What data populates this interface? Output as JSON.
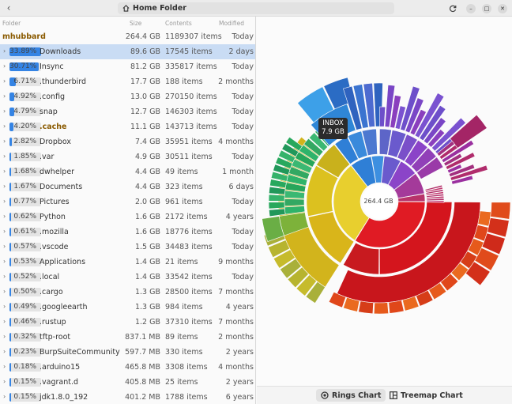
{
  "titlebar": {
    "path_label": "Home Folder",
    "icons": [
      "back-icon",
      "home-icon",
      "refresh-icon",
      "minimize-icon",
      "maximize-icon",
      "close-icon"
    ]
  },
  "columns": {
    "folder": "Folder",
    "size": "Size",
    "contents": "Contents",
    "modified": "Modified"
  },
  "root": {
    "name": "mhubbard",
    "size": "264.4 GB",
    "items": "1189307 items",
    "modified": "Today"
  },
  "rows": [
    {
      "pct": "33.89%",
      "fill": 0.3389,
      "name": "Downloads",
      "size": "89.6 GB",
      "items": "17545 items",
      "modified": "2 days",
      "selected": true
    },
    {
      "pct": "30.71%",
      "fill": 0.3071,
      "name": "Insync",
      "size": "81.2 GB",
      "items": "335817 items",
      "modified": "Today"
    },
    {
      "pct": "6.71%",
      "fill": 0.0671,
      "name": ".thunderbird",
      "size": "17.7 GB",
      "items": "188 items",
      "modified": "2 months"
    },
    {
      "pct": "4.92%",
      "fill": 0.0492,
      "name": ".config",
      "size": "13.0 GB",
      "items": "270150 items",
      "modified": "Today"
    },
    {
      "pct": "4.79%",
      "fill": 0.0479,
      "name": "snap",
      "size": "12.7 GB",
      "items": "146303 items",
      "modified": "Today"
    },
    {
      "pct": "4.20%",
      "fill": 0.042,
      "name": ".cache",
      "size": "11.1 GB",
      "items": "143713 items",
      "modified": "Today",
      "highlight": true
    },
    {
      "pct": "2.82%",
      "fill": 0.0282,
      "name": "Dropbox",
      "size": "7.4 GB",
      "items": "35951 items",
      "modified": "4 months"
    },
    {
      "pct": "1.85%",
      "fill": 0.0185,
      "name": ".var",
      "size": "4.9 GB",
      "items": "30511 items",
      "modified": "Today"
    },
    {
      "pct": "1.68%",
      "fill": 0.0168,
      "name": "dwhelper",
      "size": "4.4 GB",
      "items": "49 items",
      "modified": "1 month"
    },
    {
      "pct": "1.67%",
      "fill": 0.0167,
      "name": "Documents",
      "size": "4.4 GB",
      "items": "323 items",
      "modified": "6 days"
    },
    {
      "pct": "0.77%",
      "fill": 0.0077,
      "name": "Pictures",
      "size": "2.0 GB",
      "items": "961 items",
      "modified": "Today"
    },
    {
      "pct": "0.62%",
      "fill": 0.0062,
      "name": "Python",
      "size": "1.6 GB",
      "items": "2172 items",
      "modified": "4 years"
    },
    {
      "pct": "0.61%",
      "fill": 0.0061,
      "name": ".mozilla",
      "size": "1.6 GB",
      "items": "18776 items",
      "modified": "Today"
    },
    {
      "pct": "0.57%",
      "fill": 0.0057,
      "name": ".vscode",
      "size": "1.5 GB",
      "items": "34483 items",
      "modified": "Today"
    },
    {
      "pct": "0.53%",
      "fill": 0.0053,
      "name": "Applications",
      "size": "1.4 GB",
      "items": "21 items",
      "modified": "9 months"
    },
    {
      "pct": "0.52%",
      "fill": 0.0052,
      "name": ".local",
      "size": "1.4 GB",
      "items": "33542 items",
      "modified": "Today"
    },
    {
      "pct": "0.50%",
      "fill": 0.005,
      "name": ".cargo",
      "size": "1.3 GB",
      "items": "28500 items",
      "modified": "7 months"
    },
    {
      "pct": "0.49%",
      "fill": 0.0049,
      "name": ".googleearth",
      "size": "1.3 GB",
      "items": "984 items",
      "modified": "4 years"
    },
    {
      "pct": "0.46%",
      "fill": 0.0046,
      "name": ".rustup",
      "size": "1.2 GB",
      "items": "37310 items",
      "modified": "7 months"
    },
    {
      "pct": "0.32%",
      "fill": 0.0032,
      "name": "tftp-root",
      "size": "837.1 MB",
      "items": "89 items",
      "modified": "2 months"
    },
    {
      "pct": "0.23%",
      "fill": 0.0023,
      "name": "BurpSuiteCommunity",
      "size": "597.7 MB",
      "items": "330 items",
      "modified": "2 years"
    },
    {
      "pct": "0.18%",
      "fill": 0.0018,
      "name": ".arduino15",
      "size": "465.8 MB",
      "items": "3308 items",
      "modified": "4 months"
    },
    {
      "pct": "0.15%",
      "fill": 0.0015,
      "name": ".vagrant.d",
      "size": "405.8 MB",
      "items": "25 items",
      "modified": "2 years"
    },
    {
      "pct": "0.15%",
      "fill": 0.0015,
      "name": "jdk1.8.0_192",
      "size": "401.2 MB",
      "items": "1788 items",
      "modified": "6 years"
    }
  ],
  "chart": {
    "center_label": "264.4 GB",
    "tooltip": {
      "name": "INBOX",
      "size": "7.9 GB"
    },
    "palette": {
      "red": "#e01b24",
      "yellow": "#e5c30f",
      "green": "#33b36b",
      "blue": "#2f7fd6",
      "purple": "#8b44c8",
      "magenta": "#a42566"
    }
  },
  "bottom_tabs": {
    "rings": "Rings Chart",
    "treemap": "Treemap Chart",
    "active": "rings"
  }
}
